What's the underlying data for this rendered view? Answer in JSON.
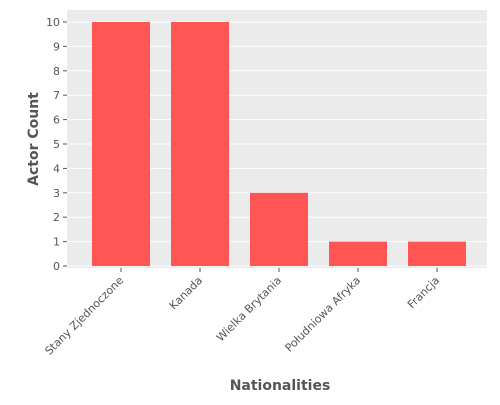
{
  "chart_data": {
    "type": "bar",
    "categories": [
      "Stany Zjednoczone",
      "Kanada",
      "Wielka Brytania",
      "Południowa Afryka",
      "Francja"
    ],
    "values": [
      10,
      10,
      3,
      1,
      1
    ],
    "title": "",
    "xlabel": "Nationalities",
    "ylabel": "Actor Count",
    "ylim": [
      0,
      10.5
    ],
    "yticks": [
      0,
      1,
      2,
      3,
      4,
      5,
      6,
      7,
      8,
      9,
      10
    ],
    "grid": true,
    "bar_color": "#ff5555",
    "plot_background": "#ebebeb",
    "grid_color": "#ffffff"
  }
}
